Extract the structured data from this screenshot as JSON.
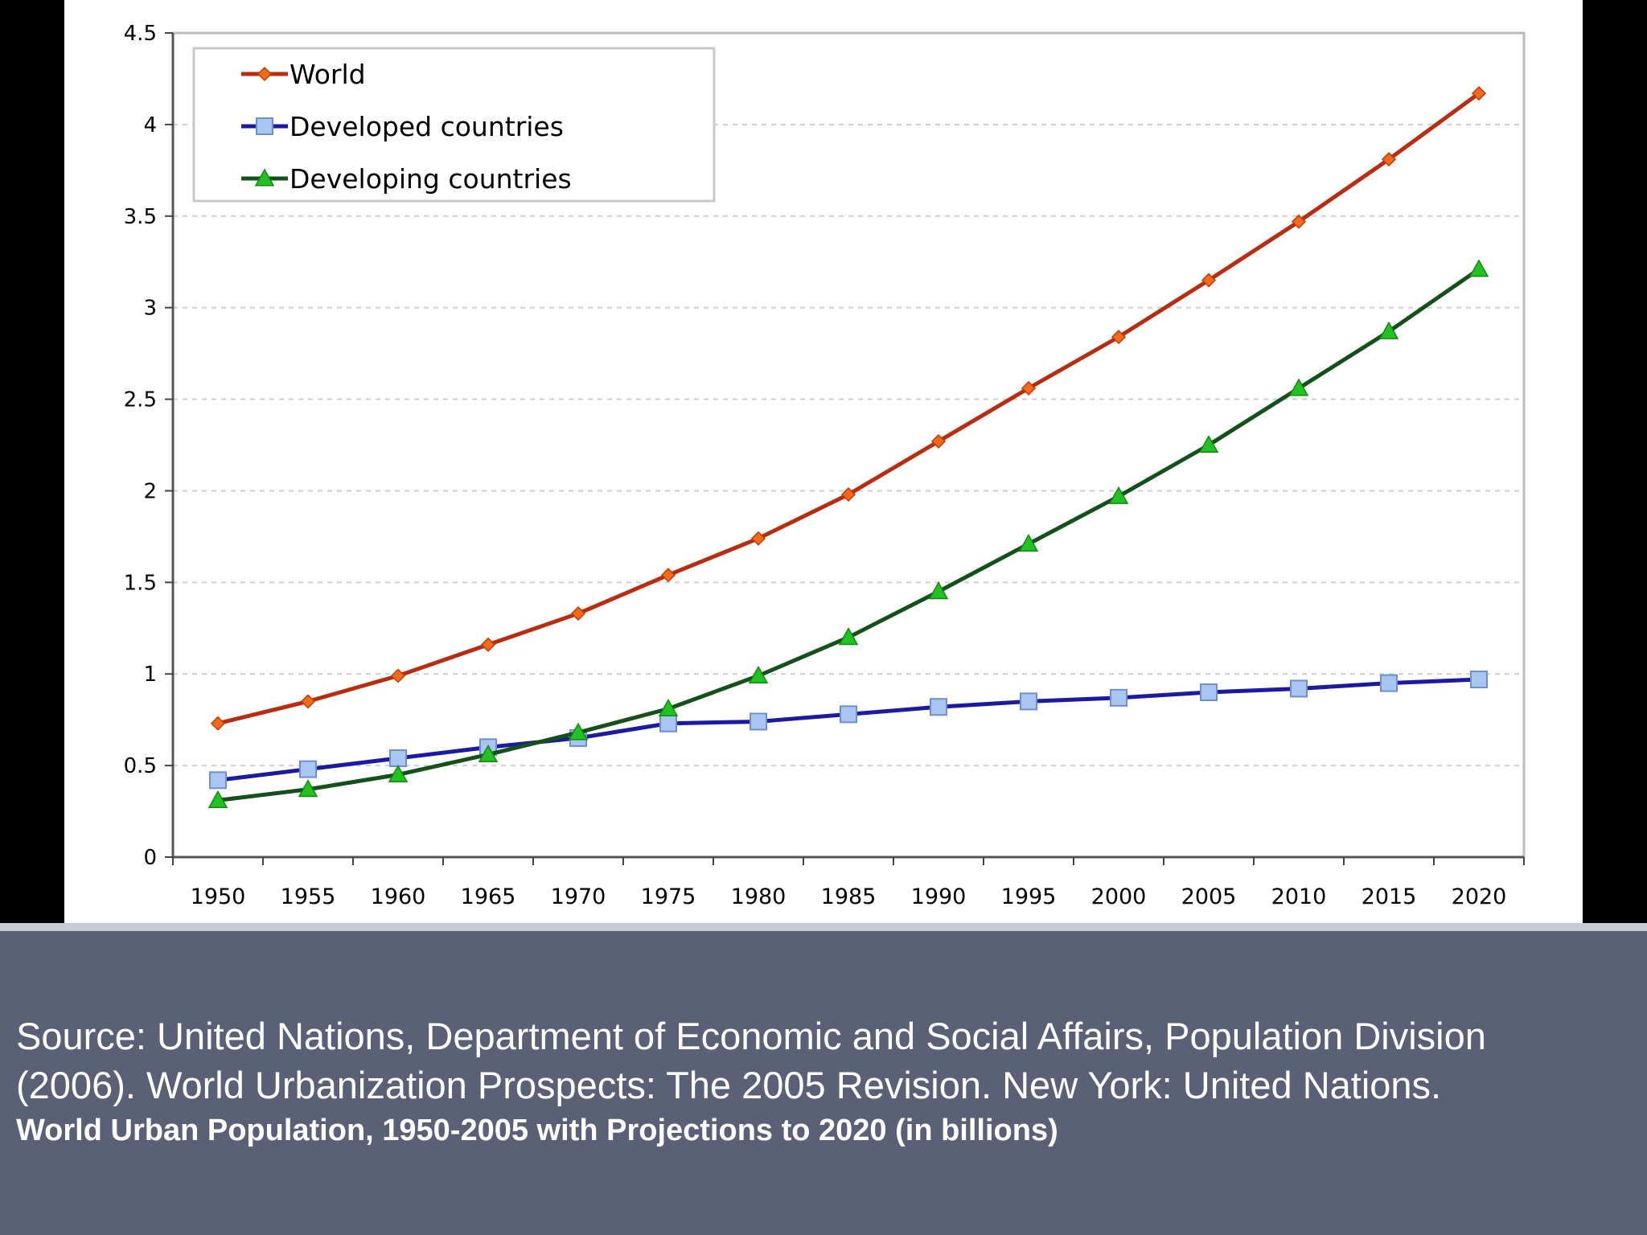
{
  "chart_data": {
    "type": "line",
    "categories": [
      "1950",
      "1955",
      "1960",
      "1965",
      "1970",
      "1975",
      "1980",
      "1985",
      "1990",
      "1995",
      "2000",
      "2005",
      "2010",
      "2015",
      "2020"
    ],
    "x": [
      1950,
      1955,
      1960,
      1965,
      1970,
      1975,
      1980,
      1985,
      1990,
      1995,
      2000,
      2005,
      2010,
      2015,
      2020
    ],
    "y_ticks": [
      "0",
      "0.5",
      "1",
      "1.5",
      "2",
      "2.5",
      "3",
      "3.5",
      "4",
      "4.5"
    ],
    "ylim": [
      0,
      4.5
    ],
    "grid": "horizontal-dashed",
    "legend_position": "top-left",
    "series": [
      {
        "name": "World",
        "color": "#b82c10",
        "marker": "diamond",
        "values": [
          0.73,
          0.85,
          0.99,
          1.16,
          1.33,
          1.54,
          1.74,
          1.98,
          2.27,
          2.56,
          2.84,
          3.15,
          3.47,
          3.81,
          4.17
        ]
      },
      {
        "name": "Developed countries",
        "color": "#1a1aa3",
        "marker": "square",
        "marker_fill": "#a9c6f2",
        "values": [
          0.42,
          0.48,
          0.54,
          0.6,
          0.65,
          0.73,
          0.74,
          0.78,
          0.82,
          0.85,
          0.87,
          0.9,
          0.92,
          0.95,
          0.97
        ]
      },
      {
        "name": "Developing countries",
        "color": "#14501a",
        "marker": "triangle",
        "marker_fill": "#22c222",
        "values": [
          0.31,
          0.37,
          0.45,
          0.56,
          0.68,
          0.81,
          0.99,
          1.2,
          1.45,
          1.71,
          1.97,
          2.25,
          2.56,
          2.87,
          3.21
        ]
      }
    ]
  },
  "caption": {
    "source": "Source: United Nations, Department of Economic and Social Affairs, Population Division\n(2006). World Urbanization Prospects: The 2005 Revision. New York: United Nations.",
    "title": "World Urban Population, 1950-2005 with Projections to 2020 (in billions)"
  }
}
